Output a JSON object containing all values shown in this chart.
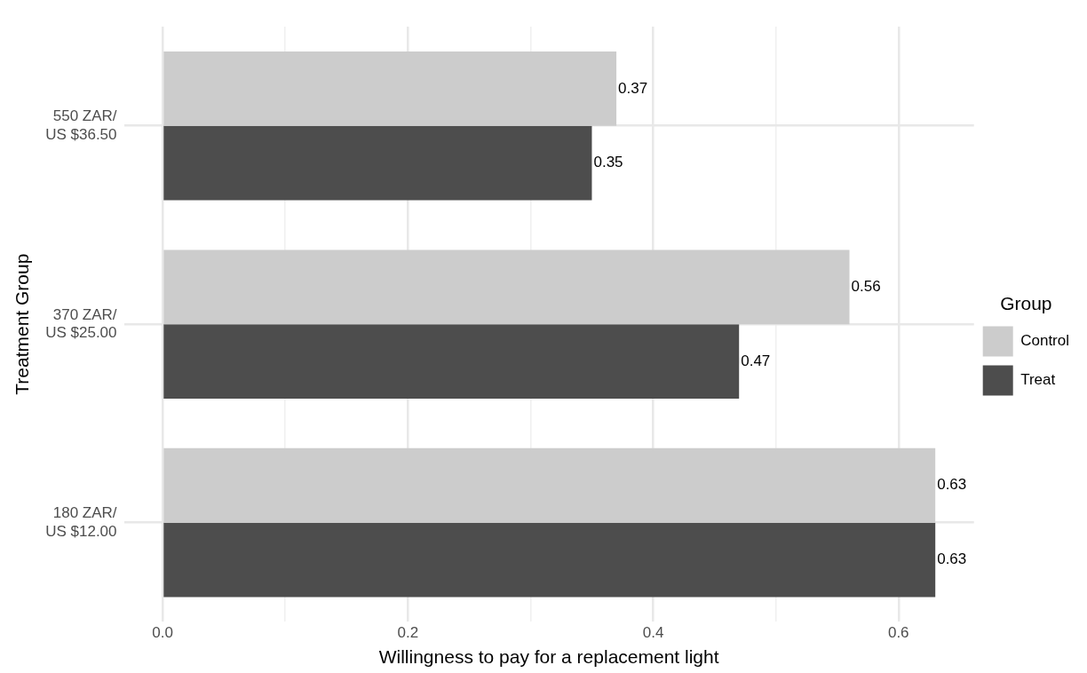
{
  "chart_data": {
    "type": "bar",
    "orientation": "horizontal",
    "xlabel": "Willingness to pay for a replacement light",
    "ylabel": "Treatment Group",
    "legend_title": "Group",
    "categories": [
      "550 ZAR/\nUS $36.50",
      "370 ZAR/\nUS $25.00",
      "180 ZAR/\nUS $12.00"
    ],
    "series": [
      {
        "name": "Control",
        "color": "#cccccc",
        "values": [
          0.37,
          0.56,
          0.63
        ]
      },
      {
        "name": "Treat",
        "color": "#4d4d4d",
        "values": [
          0.35,
          0.47,
          0.63
        ]
      }
    ],
    "xlim": [
      -0.0315,
      0.6615
    ],
    "xticks": [
      {
        "value": 0,
        "label": "0.0"
      },
      {
        "value": 0.1,
        "label": null
      },
      {
        "value": 0.2,
        "label": "0.2"
      },
      {
        "value": 0.3,
        "label": null
      },
      {
        "value": 0.4,
        "label": "0.4"
      },
      {
        "value": 0.5,
        "label": null
      },
      {
        "value": 0.6,
        "label": "0.6"
      }
    ],
    "grid": true,
    "legend": "right",
    "data_labels": true
  }
}
